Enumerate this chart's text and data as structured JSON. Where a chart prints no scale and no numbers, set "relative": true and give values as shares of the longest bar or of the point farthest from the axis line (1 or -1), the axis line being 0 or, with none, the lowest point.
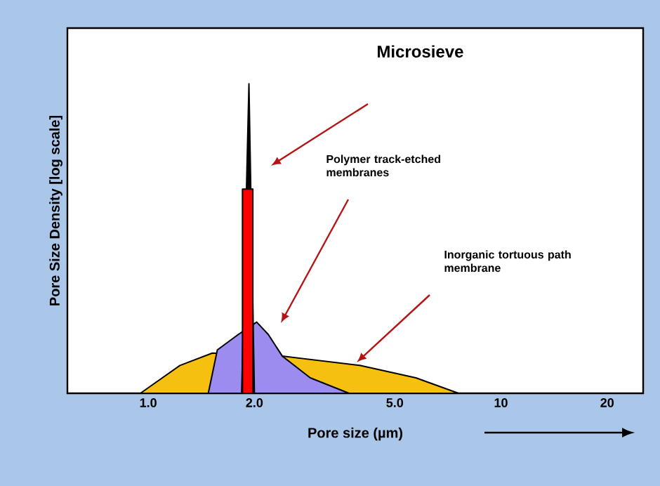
{
  "chart_data": {
    "type": "area",
    "relative": true,
    "log": "x",
    "xlabel": "Pore size (µm)",
    "ylabel": "Pore Size Density [log scale]",
    "xlim": [
      0.59,
      25.3
    ],
    "xticks": [
      {
        "value": 1,
        "label": "1.0"
      },
      {
        "value": 2,
        "label": "2.0"
      },
      {
        "value": 5,
        "label": "5.0"
      },
      10,
      20
    ],
    "series": [
      {
        "color": "#f5c010",
        "x": [
          0.95,
          1.23,
          1.52,
          2.4,
          3.98,
          5.74,
          7.58
        ],
        "values": [
          0,
          0.09,
          0.13,
          0.12,
          0.09,
          0.05,
          0
        ]
      },
      {
        "color": "#9c8cf0",
        "x": [
          1.48,
          1.57,
          1.8,
          2.03,
          2.19,
          2.4,
          2.88,
          3.71
        ],
        "values": [
          0,
          0.14,
          0.19,
          0.23,
          0.19,
          0.12,
          0.05,
          0
        ]
      },
      {
        "color": "#000000",
        "x": [
          1.84,
          1.93,
          2.0
        ],
        "values": [
          0,
          1,
          0
        ]
      },
      {
        "color": "#ff0000",
        "x": [
          1.85,
          1.85,
          1.98,
          1.98
        ],
        "values": [
          0,
          0.66,
          0.66,
          0
        ]
      }
    ],
    "annotations": [
      "Microsieve",
      "Polymer track-etched membranes",
      "Inorganic tortuous path membrane"
    ]
  }
}
